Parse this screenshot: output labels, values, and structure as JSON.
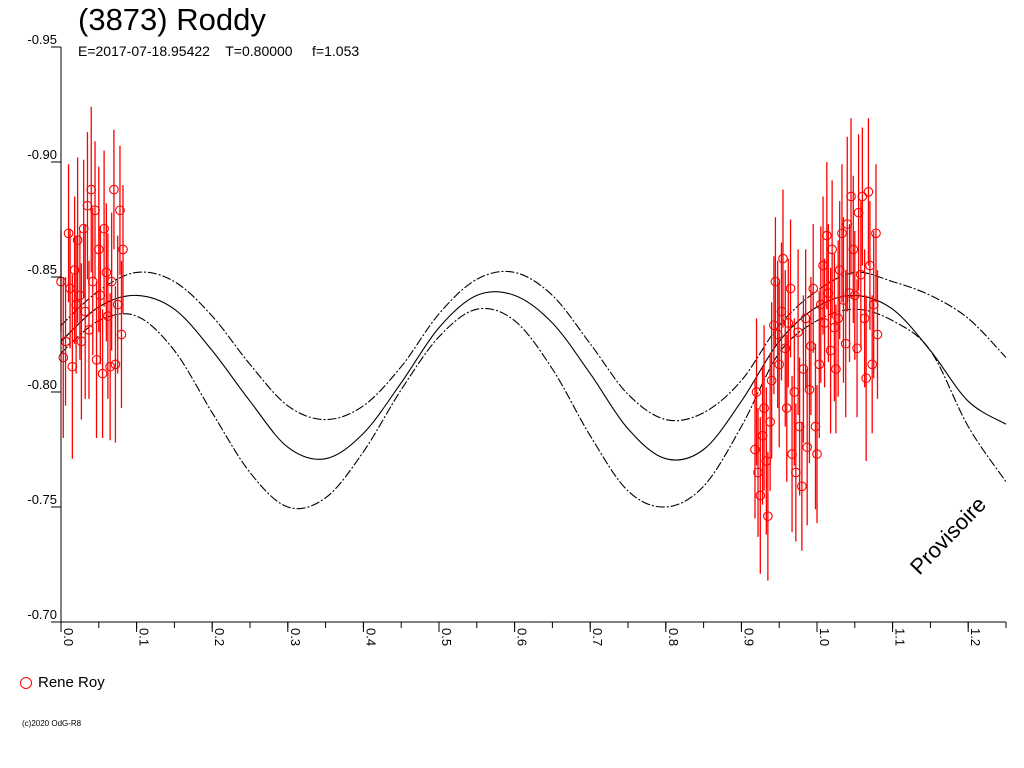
{
  "title": "(3873) Roddy",
  "subtitle": "E=2017-07-18.95422    T=0.80000     f=1.053",
  "watermark": "Provisoire",
  "copyright": "(c)2020 OdG-R8",
  "colors": {
    "observations": "#ff0000",
    "curves": "#000000",
    "axis": "#000000"
  },
  "chart_data": {
    "type": "scatter",
    "title": "(3873) Roddy",
    "xlabel": "",
    "ylabel": "",
    "xlim": [
      0.0,
      1.25
    ],
    "ylim": [
      -0.95,
      -0.7
    ],
    "y_axis_inverted": true,
    "xticks": [
      0.0,
      0.1,
      0.2,
      0.3,
      0.4,
      0.5,
      0.6,
      0.7,
      0.8,
      0.9,
      1.0,
      1.1,
      1.2
    ],
    "xtick_labels": [
      "0.0",
      "0.1",
      "0.2",
      "0.3",
      "0.4",
      "0.5",
      "0.6",
      "0.7",
      "0.8",
      "0.9",
      "1.0",
      "1.1",
      "1.2"
    ],
    "yticks": [
      -0.95,
      -0.9,
      -0.85,
      -0.8,
      -0.75,
      -0.7
    ],
    "ytick_labels": [
      "-0.95",
      "-0.90",
      "-0.85",
      "-0.80",
      "-0.75",
      "-0.70"
    ],
    "grid": false,
    "legend": {
      "position": "bottom-left",
      "entries": [
        "Rene Roy"
      ]
    },
    "series": [
      {
        "name": "Rene Roy",
        "kind": "points-with-error-bars",
        "x": [
          0.0,
          0.003,
          0.006,
          0.01,
          0.012,
          0.015,
          0.018,
          0.02,
          0.022,
          0.025,
          0.027,
          0.03,
          0.032,
          0.035,
          0.037,
          0.04,
          0.042,
          0.045,
          0.047,
          0.05,
          0.052,
          0.055,
          0.057,
          0.06,
          0.062,
          0.065,
          0.067,
          0.07,
          0.072,
          0.075,
          0.078,
          0.08,
          0.082,
          0.918,
          0.92,
          0.922,
          0.925,
          0.928,
          0.93,
          0.933,
          0.935,
          0.938,
          0.94,
          0.943,
          0.945,
          0.948,
          0.95,
          0.953,
          0.955,
          0.958,
          0.96,
          0.962,
          0.965,
          0.967,
          0.97,
          0.972,
          0.975,
          0.977,
          0.98,
          0.982,
          0.985,
          0.987,
          0.99,
          0.992,
          0.995,
          0.998,
          1.0,
          1.003,
          1.005,
          1.008,
          1.01,
          1.013,
          1.015,
          1.018,
          1.02,
          1.023,
          1.025,
          1.028,
          1.03,
          1.033,
          1.035,
          1.038,
          1.04,
          1.043,
          1.045,
          1.048,
          1.05,
          1.053,
          1.055,
          1.058,
          1.06,
          1.063,
          1.065,
          1.068,
          1.07,
          1.073,
          1.075,
          1.078,
          1.08
        ],
        "y": [
          -0.848,
          -0.815,
          -0.822,
          -0.869,
          -0.845,
          -0.811,
          -0.853,
          -0.838,
          -0.866,
          -0.842,
          -0.822,
          -0.871,
          -0.835,
          -0.881,
          -0.827,
          -0.888,
          -0.848,
          -0.879,
          -0.814,
          -0.862,
          -0.842,
          -0.808,
          -0.871,
          -0.852,
          -0.833,
          -0.811,
          -0.848,
          -0.888,
          -0.812,
          -0.838,
          -0.879,
          -0.825,
          -0.862,
          -0.775,
          -0.8,
          -0.765,
          -0.755,
          -0.781,
          -0.793,
          -0.77,
          -0.746,
          -0.787,
          -0.805,
          -0.829,
          -0.848,
          -0.825,
          -0.812,
          -0.835,
          -0.858,
          -0.819,
          -0.793,
          -0.83,
          -0.845,
          -0.773,
          -0.8,
          -0.765,
          -0.826,
          -0.785,
          -0.759,
          -0.81,
          -0.832,
          -0.776,
          -0.801,
          -0.82,
          -0.845,
          -0.785,
          -0.773,
          -0.812,
          -0.838,
          -0.855,
          -0.83,
          -0.868,
          -0.843,
          -0.818,
          -0.862,
          -0.828,
          -0.81,
          -0.832,
          -0.853,
          -0.869,
          -0.84,
          -0.821,
          -0.873,
          -0.843,
          -0.885,
          -0.862,
          -0.842,
          -0.819,
          -0.878,
          -0.851,
          -0.885,
          -0.832,
          -0.806,
          -0.887,
          -0.855,
          -0.812,
          -0.838,
          -0.869,
          -0.825
        ],
        "err": [
          0.022,
          0.035,
          0.028,
          0.03,
          0.026,
          0.04,
          0.032,
          0.03,
          0.036,
          0.028,
          0.034,
          0.03,
          0.038,
          0.032,
          0.03,
          0.036,
          0.032,
          0.03,
          0.034,
          0.036,
          0.03,
          0.028,
          0.034,
          0.03,
          0.036,
          0.032,
          0.03,
          0.026,
          0.034,
          0.03,
          0.028,
          0.032,
          0.028,
          0.03,
          0.032,
          0.028,
          0.034,
          0.03,
          0.036,
          0.032,
          0.028,
          0.03,
          0.034,
          0.03,
          0.028,
          0.032,
          0.036,
          0.03,
          0.03,
          0.034,
          0.032,
          0.028,
          0.03,
          0.034,
          0.032,
          0.03,
          0.036,
          0.03,
          0.028,
          0.032,
          0.03,
          0.034,
          0.032,
          0.03,
          0.028,
          0.036,
          0.03,
          0.032,
          0.034,
          0.03,
          0.028,
          0.032,
          0.03,
          0.036,
          0.03,
          0.032,
          0.028,
          0.034,
          0.03,
          0.03,
          0.036,
          0.032,
          0.038,
          0.03,
          0.034,
          0.032,
          0.028,
          0.03,
          0.034,
          0.032,
          0.03,
          0.03,
          0.036,
          0.032,
          0.028,
          0.03,
          0.032,
          0.03,
          0.028
        ],
        "color": "#ff0000"
      },
      {
        "name": "",
        "kind": "fit-curve",
        "style": "solid",
        "x": [
          0.0,
          0.05,
          0.1,
          0.15,
          0.2,
          0.25,
          0.3,
          0.35,
          0.4,
          0.45,
          0.5,
          0.55,
          0.6,
          0.65,
          0.7,
          0.75,
          0.8,
          0.85,
          0.9,
          0.95,
          1.0,
          1.05,
          1.1,
          1.15,
          1.2,
          1.25
        ],
        "y": [
          -0.822,
          -0.837,
          -0.842,
          -0.836,
          -0.818,
          -0.796,
          -0.776,
          -0.771,
          -0.782,
          -0.804,
          -0.828,
          -0.842,
          -0.842,
          -0.83,
          -0.808,
          -0.784,
          -0.771,
          -0.775,
          -0.796,
          -0.822,
          -0.837,
          -0.842,
          -0.836,
          -0.818,
          -0.796,
          -0.786
        ],
        "color": "#000000"
      },
      {
        "name": "",
        "kind": "envelope-upper",
        "style": "dash-dot",
        "x": [
          0.0,
          0.05,
          0.1,
          0.15,
          0.2,
          0.25,
          0.3,
          0.35,
          0.4,
          0.45,
          0.5,
          0.55,
          0.6,
          0.65,
          0.7,
          0.75,
          0.8,
          0.85,
          0.9,
          0.95,
          1.0,
          1.05,
          1.1,
          1.15,
          1.2,
          1.25
        ],
        "y": [
          -0.829,
          -0.844,
          -0.852,
          -0.848,
          -0.833,
          -0.812,
          -0.794,
          -0.788,
          -0.794,
          -0.811,
          -0.834,
          -0.849,
          -0.852,
          -0.842,
          -0.821,
          -0.799,
          -0.788,
          -0.791,
          -0.805,
          -0.829,
          -0.844,
          -0.852,
          -0.848,
          -0.842,
          -0.832,
          -0.815
        ],
        "color": "#000000"
      },
      {
        "name": "",
        "kind": "envelope-lower",
        "style": "dash-dot",
        "x": [
          0.0,
          0.05,
          0.1,
          0.15,
          0.2,
          0.25,
          0.3,
          0.35,
          0.4,
          0.45,
          0.5,
          0.55,
          0.6,
          0.65,
          0.7,
          0.75,
          0.8,
          0.85,
          0.9,
          0.95,
          1.0,
          1.05,
          1.1,
          1.15,
          1.2,
          1.25
        ],
        "y": [
          -0.817,
          -0.831,
          -0.833,
          -0.818,
          -0.791,
          -0.765,
          -0.75,
          -0.754,
          -0.774,
          -0.801,
          -0.824,
          -0.836,
          -0.831,
          -0.81,
          -0.781,
          -0.757,
          -0.75,
          -0.759,
          -0.785,
          -0.817,
          -0.831,
          -0.836,
          -0.831,
          -0.818,
          -0.785,
          -0.761
        ],
        "color": "#000000"
      }
    ]
  }
}
